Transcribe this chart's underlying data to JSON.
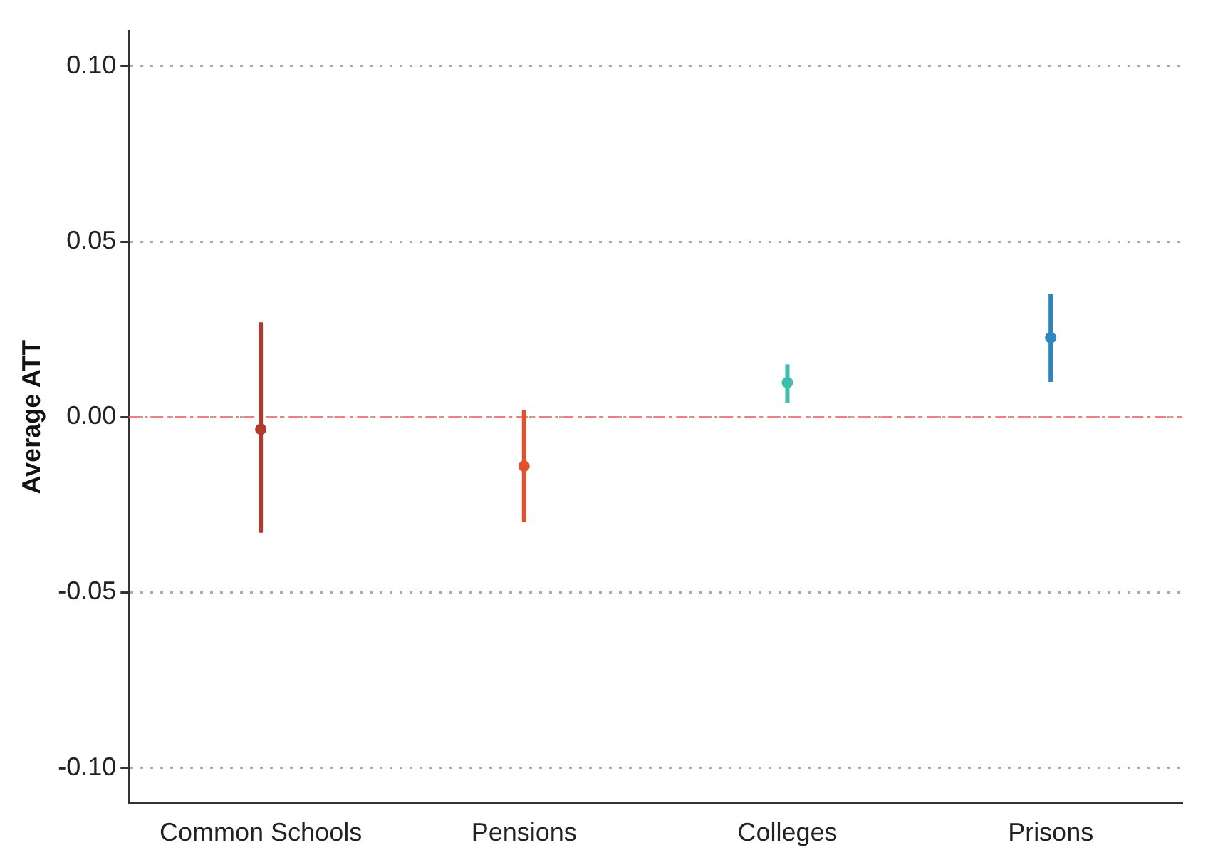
{
  "chart_data": {
    "type": "scatter",
    "ylabel": "Average ATT",
    "categories": [
      "Common Schools",
      "Pensions",
      "Colleges",
      "Prisons"
    ],
    "values": [
      -0.0035,
      -0.014,
      0.0098,
      0.0226
    ],
    "colors": [
      "#b03a2e",
      "#e0522b",
      "#3cbfae",
      "#2e86c1"
    ],
    "errors": [
      [
        -0.033,
        0.027
      ],
      [
        -0.03,
        0.002
      ],
      [
        0.004,
        0.015
      ],
      [
        0.01,
        0.035
      ]
    ],
    "ylim": [
      -0.11,
      0.11
    ],
    "yticks": [
      {
        "value": -0.1,
        "label": "-0.10"
      },
      {
        "value": -0.05,
        "label": "-0.05"
      },
      {
        "value": 0,
        "label": "0.00"
      },
      {
        "value": 0.05,
        "label": "0.05"
      },
      {
        "value": 0.1,
        "label": "0.10"
      }
    ],
    "grid": "y",
    "legend": false,
    "marker": "circle",
    "ref_lines": [
      {
        "axis": "y",
        "value": 0,
        "color": "#f08080",
        "line_style": "dashdot"
      }
    ]
  }
}
